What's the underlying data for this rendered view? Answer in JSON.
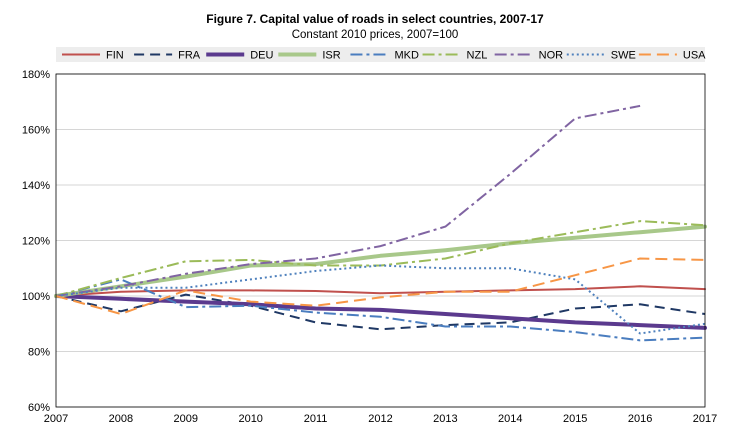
{
  "chart_data": {
    "type": "line",
    "title": "Figure 7. Capital value of roads in select countries, 2007-17",
    "subtitle": "Constant 2010 prices, 2007=100",
    "xlabel": "",
    "ylabel": "",
    "x": [
      2007,
      2008,
      2009,
      2010,
      2011,
      2012,
      2013,
      2014,
      2015,
      2016,
      2017
    ],
    "x_tick_labels": [
      "2007",
      "2008",
      "2009",
      "2010",
      "2011",
      "2012",
      "2013",
      "2014",
      "2015",
      "2016",
      "2017"
    ],
    "ylim": [
      60,
      180
    ],
    "y_ticks": [
      60,
      80,
      100,
      120,
      140,
      160,
      180
    ],
    "y_tick_labels": [
      "60%",
      "80%",
      "100%",
      "120%",
      "140%",
      "160%",
      "180%"
    ],
    "grid": "horizontal",
    "legend_position": "top",
    "series": [
      {
        "name": "FIN",
        "color": "#c0504d",
        "dash": "solid",
        "width": 2,
        "values": [
          100,
          101.5,
          102.0,
          102.0,
          101.8,
          101.0,
          101.5,
          102.0,
          102.5,
          103.5,
          102.5
        ]
      },
      {
        "name": "FRA",
        "color": "#1f3864",
        "dash": "10,6",
        "width": 2,
        "values": [
          100,
          94.5,
          100.5,
          96.5,
          90.5,
          88.0,
          89.5,
          90.5,
          95.5,
          97.0,
          93.5
        ]
      },
      {
        "name": "DEU",
        "color": "#5b3a8e",
        "dash": "solid",
        "width": 4,
        "values": [
          100,
          99.0,
          98.0,
          97.0,
          95.5,
          95.0,
          93.5,
          92.0,
          90.5,
          89.5,
          88.5
        ]
      },
      {
        "name": "ISR",
        "color": "#a8c88a",
        "dash": "solid",
        "width": 4,
        "values": [
          100,
          103.5,
          107.0,
          111.0,
          111.5,
          114.5,
          116.5,
          119.0,
          121.0,
          123.0,
          125.0
        ]
      },
      {
        "name": "MKD",
        "color": "#4a7dbf",
        "dash": "12,4,3,4",
        "width": 2,
        "values": [
          100,
          106.0,
          96.0,
          96.5,
          94.0,
          92.5,
          89.0,
          89.0,
          87.0,
          84.0,
          85.0
        ]
      },
      {
        "name": "NZL",
        "color": "#9bbb59",
        "dash": "12,4,3,4",
        "width": 2,
        "values": [
          100,
          106.5,
          112.5,
          113.0,
          111.0,
          111.0,
          113.5,
          119.0,
          123.0,
          127.0,
          125.5
        ]
      },
      {
        "name": "NOR",
        "color": "#8064a2",
        "dash": "12,4,3,4",
        "width": 2,
        "values": [
          100,
          103.5,
          108.0,
          111.5,
          113.5,
          118.0,
          125.0,
          144.0,
          164.0,
          168.5,
          null
        ]
      },
      {
        "name": "SWE",
        "color": "#4f81bd",
        "dash": "2,3",
        "width": 2,
        "values": [
          100,
          103.0,
          103.0,
          106.0,
          109.0,
          111.0,
          110.0,
          110.0,
          106.0,
          86.5,
          90.0
        ]
      },
      {
        "name": "USA",
        "color": "#f79646",
        "dash": "12,6",
        "width": 2,
        "values": [
          100,
          93.5,
          102.0,
          98.0,
          96.5,
          99.5,
          101.5,
          101.5,
          107.5,
          113.5,
          113.0
        ]
      }
    ]
  }
}
